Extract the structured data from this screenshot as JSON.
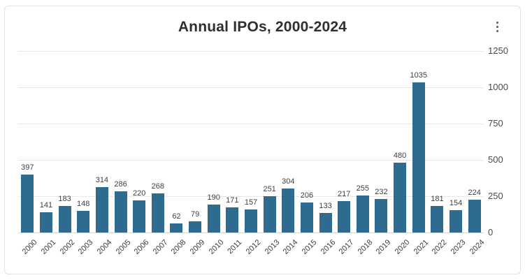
{
  "card": {
    "title": "Annual IPOs, 2000-2024",
    "menu_icon": "kebab-menu-icon"
  },
  "chart_data": {
    "type": "bar",
    "title": "Annual IPOs, 2000-2024",
    "categories": [
      "2000",
      "2001",
      "2002",
      "2003",
      "2004",
      "2005",
      "2006",
      "2007",
      "2008",
      "2009",
      "2010",
      "2011",
      "2012",
      "2013",
      "2014",
      "2015",
      "2016",
      "2017",
      "2018",
      "2019",
      "2020",
      "2021",
      "2022",
      "2023",
      "2024"
    ],
    "values": [
      397,
      141,
      183,
      148,
      314,
      286,
      220,
      268,
      62,
      79,
      190,
      171,
      157,
      251,
      304,
      206,
      133,
      217,
      255,
      232,
      480,
      1035,
      181,
      154,
      224
    ],
    "xlabel": "",
    "ylabel": "",
    "ylim": [
      0,
      1250
    ],
    "yticks": [
      0,
      250,
      500,
      750,
      1000,
      1250
    ],
    "y_axis_position": "right",
    "grid": "horizontal",
    "data_labels": "on",
    "legend": "none",
    "bar_color": "#2e6b8f",
    "gridline_color": "#e6e6e6",
    "label_color": "#3f3f3f"
  }
}
